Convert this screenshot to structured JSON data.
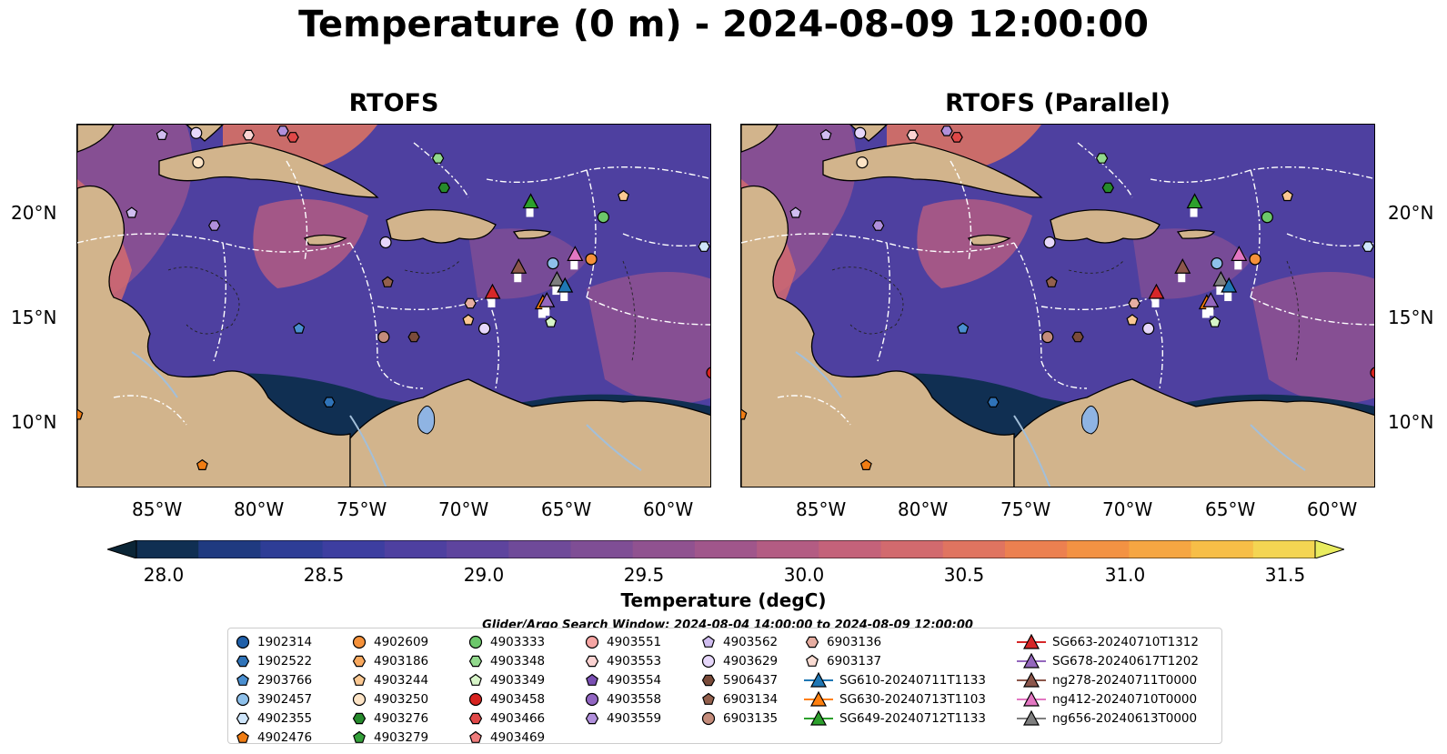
{
  "title": "Temperature (0 m) - 2024-08-09 12:00:00",
  "panels": [
    {
      "title": "RTOFS"
    },
    {
      "title": "RTOFS (Parallel)"
    }
  ],
  "lat_ticks": [
    "20°N",
    "15°N",
    "10°N"
  ],
  "lon_ticks": [
    "85°W",
    "80°W",
    "75°W",
    "70°W",
    "65°W",
    "60°W"
  ],
  "colorbar": {
    "label": "Temperature (degC)",
    "ticks": [
      "28.0",
      "28.5",
      "29.0",
      "29.5",
      "30.0",
      "30.5",
      "31.0",
      "31.5"
    ],
    "colors": [
      "#0b2536",
      "#102f52",
      "#1f3a80",
      "#2e3d96",
      "#3d3ea0",
      "#4e40a0",
      "#5e449e",
      "#6f4a99",
      "#7f4e95",
      "#905290",
      "#a0568b",
      "#b35c83",
      "#c4627a",
      "#d26a6e",
      "#e07460",
      "#ec8050",
      "#f39243",
      "#f6a642",
      "#f7be47",
      "#f4d552",
      "#e9ec5f"
    ]
  },
  "search_window": "Glider/Argo Search Window: 2024-08-04 14:00:00 to 2024-08-09 12:00:00",
  "legend": [
    [
      {
        "label": "1902314",
        "marker": "circle",
        "color": "#1f5fa8"
      },
      {
        "label": "1902522",
        "marker": "hexagon",
        "color": "#2f73b8"
      },
      {
        "label": "2903766",
        "marker": "pentagon",
        "color": "#4a8fd0"
      },
      {
        "label": "3902457",
        "marker": "circle",
        "color": "#8ec0ea"
      },
      {
        "label": "4902355",
        "marker": "hexagon",
        "color": "#cfe6fb"
      },
      {
        "label": "4902476",
        "marker": "pentagon",
        "color": "#f07d14"
      }
    ],
    [
      {
        "label": "4902609",
        "marker": "circle",
        "color": "#f5913a"
      },
      {
        "label": "4903186",
        "marker": "hexagon",
        "color": "#f8a85e"
      },
      {
        "label": "4903244",
        "marker": "pentagon",
        "color": "#fbc892"
      },
      {
        "label": "4903250",
        "marker": "circle",
        "color": "#fde4c6"
      },
      {
        "label": "4903276",
        "marker": "hexagon",
        "color": "#268a2c"
      },
      {
        "label": "4903279",
        "marker": "pentagon",
        "color": "#34a03a"
      }
    ],
    [
      {
        "label": "4903333",
        "marker": "circle",
        "color": "#6cc76a"
      },
      {
        "label": "4903348",
        "marker": "hexagon",
        "color": "#92d98d"
      },
      {
        "label": "4903349",
        "marker": "pentagon",
        "color": "#d7f5c8"
      },
      {
        "label": "4903458",
        "marker": "circle",
        "color": "#d7231f"
      },
      {
        "label": "4903466",
        "marker": "hexagon",
        "color": "#e04848"
      },
      {
        "label": "4903469",
        "marker": "pentagon",
        "color": "#ef7c7c"
      }
    ],
    [
      {
        "label": "4903551",
        "marker": "circle",
        "color": "#f6a5a3"
      },
      {
        "label": "4903553",
        "marker": "hexagon",
        "color": "#fbd3d2"
      },
      {
        "label": "4903554",
        "marker": "pentagon",
        "color": "#7a4fb3"
      },
      {
        "label": "4903558",
        "marker": "circle",
        "color": "#9266c2"
      },
      {
        "label": "4903559",
        "marker": "hexagon",
        "color": "#b190dc"
      }
    ],
    [
      {
        "label": "4903562",
        "marker": "pentagon",
        "color": "#d0bdf0"
      },
      {
        "label": "4903629",
        "marker": "circle",
        "color": "#e6d7fa"
      },
      {
        "label": "5906437",
        "marker": "hexagon",
        "color": "#7a4b3a"
      },
      {
        "label": "6903134",
        "marker": "pentagon",
        "color": "#93604d"
      },
      {
        "label": "6903135",
        "marker": "circle",
        "color": "#c48c7b"
      }
    ],
    [
      {
        "label": "6903136",
        "marker": "hexagon",
        "color": "#e6ada1"
      },
      {
        "label": "6903137",
        "marker": "pentagon",
        "color": "#fadcd3"
      },
      {
        "label": "SG610-20240711T1133",
        "marker": "triangle-line",
        "color": "#1f77b4"
      },
      {
        "label": "SG630-20240713T1103",
        "marker": "triangle-line",
        "color": "#ff7f0e"
      },
      {
        "label": "SG649-20240712T1133",
        "marker": "triangle-line",
        "color": "#2ca02c"
      }
    ],
    [
      {
        "label": "SG663-20240710T1312",
        "marker": "triangle-line",
        "color": "#d62728"
      },
      {
        "label": "SG678-20240617T1202",
        "marker": "triangle-line",
        "color": "#9467bd"
      },
      {
        "label": "ng278-20240711T0000",
        "marker": "triangle-line",
        "color": "#8c564b"
      },
      {
        "label": "ng412-20240710T0000",
        "marker": "triangle-line",
        "color": "#e377c2"
      },
      {
        "label": "ng656-20240613T0000",
        "marker": "triangle-line",
        "color": "#7f7f7f"
      }
    ]
  ],
  "colors": {
    "land": "#d2b48c",
    "lake": "#8fb4e3",
    "river": "#a3bfd9",
    "ocean_base": "#4a3f9c",
    "boundary": "#ffffff"
  },
  "observations": [
    {
      "id": "4903562",
      "lon": -85.3,
      "lat": 23.8
    },
    {
      "id": "4903629",
      "lon": -83.6,
      "lat": 23.9
    },
    {
      "id": "4903553",
      "lon": -81.0,
      "lat": 23.8
    },
    {
      "id": "4903559",
      "lon": -79.3,
      "lat": 24.0
    },
    {
      "id": "4903466",
      "lon": -78.8,
      "lat": 23.7
    },
    {
      "id": "4903348",
      "lon": -71.6,
      "lat": 22.7
    },
    {
      "id": "4903276",
      "lon": -71.3,
      "lat": 21.3
    },
    {
      "id": "4903250",
      "lon": -83.5,
      "lat": 22.5
    },
    {
      "id": "4903562",
      "lon": -86.8,
      "lat": 20.1
    },
    {
      "id": "4903559",
      "lon": -82.7,
      "lat": 19.5
    },
    {
      "id": "4903629",
      "lon": -74.2,
      "lat": 18.7
    },
    {
      "id": "6903134",
      "lon": -74.1,
      "lat": 16.8
    },
    {
      "id": "2903766",
      "lon": -78.5,
      "lat": 14.6
    },
    {
      "id": "1902522",
      "lon": -77.0,
      "lat": 11.1
    },
    {
      "id": "6903135",
      "lon": -74.3,
      "lat": 14.2
    },
    {
      "id": "5906437",
      "lon": -72.8,
      "lat": 14.2
    },
    {
      "id": "6903136",
      "lon": -70.0,
      "lat": 15.8
    },
    {
      "id": "4903244",
      "lon": -70.1,
      "lat": 15.0
    },
    {
      "id": "4903629",
      "lon": -69.3,
      "lat": 14.6
    },
    {
      "id": "4903244",
      "lon": -62.4,
      "lat": 20.9
    },
    {
      "id": "4903333",
      "lon": -63.4,
      "lat": 19.9
    },
    {
      "id": "4902609",
      "lon": -64.0,
      "lat": 17.9
    },
    {
      "id": "3902457",
      "lon": -65.9,
      "lat": 17.7
    },
    {
      "id": "4903349",
      "lon": -66.0,
      "lat": 14.9
    },
    {
      "id": "4902355",
      "lon": -58.4,
      "lat": 18.5
    },
    {
      "id": "4903458",
      "lon": -58.0,
      "lat": 12.5
    },
    {
      "id": "4902476",
      "lon": -83.3,
      "lat": 8.1
    },
    {
      "id": "4902476",
      "lon": -89.5,
      "lat": 10.5
    }
  ],
  "gliders": [
    {
      "id": "SG649-20240712T1133",
      "lon": -67.0,
      "lat": 20.6,
      "color": "#2ca02c"
    },
    {
      "id": "SG663-20240710T1312",
      "lon": -68.9,
      "lat": 16.3,
      "color": "#d62728"
    },
    {
      "id": "ng278-20240711T0000",
      "lon": -67.6,
      "lat": 17.5,
      "color": "#8c564b"
    },
    {
      "id": "ng412-20240710T0000",
      "lon": -64.8,
      "lat": 18.1,
      "color": "#e377c2"
    },
    {
      "id": "ng656-20240613T0000",
      "lon": -65.7,
      "lat": 16.9,
      "color": "#7f7f7f"
    },
    {
      "id": "SG610-20240711T1133",
      "lon": -65.3,
      "lat": 16.6,
      "color": "#1f77b4"
    },
    {
      "id": "SG630-20240713T1103",
      "lon": -66.4,
      "lat": 15.8,
      "color": "#ff7f0e"
    },
    {
      "id": "SG678-20240617T1202",
      "lon": -66.2,
      "lat": 15.9,
      "color": "#9467bd"
    }
  ]
}
